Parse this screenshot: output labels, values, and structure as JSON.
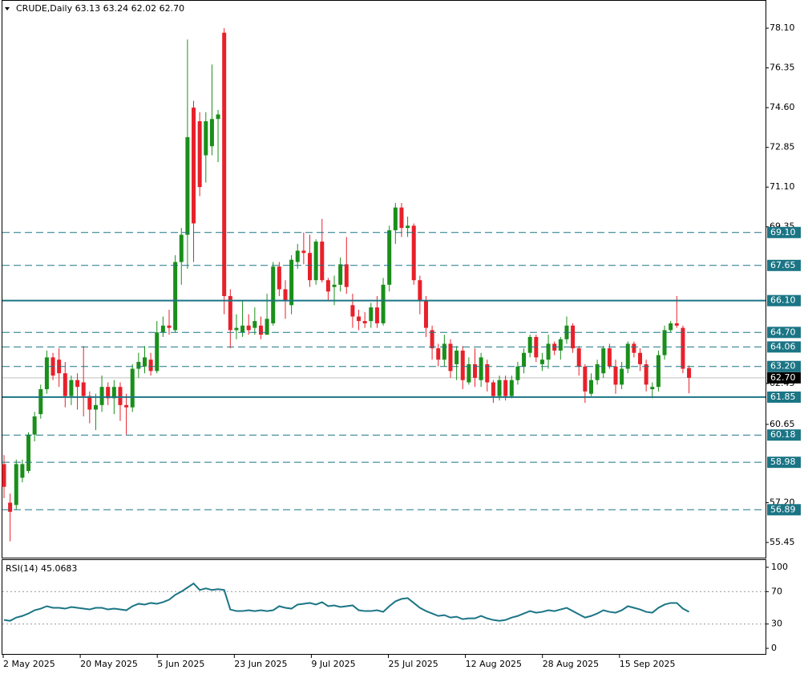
{
  "header": {
    "title": "CRUDE,Daily  63.13 63.24 62.02 62.70"
  },
  "chart_data": [
    {
      "type": "candlestick",
      "up_color": "#1a8f1a",
      "down_color": "#e8202a",
      "ylim": [
        54.78,
        79.34
      ],
      "yticks": [
        {
          "value": 78.1,
          "label": "78.10"
        },
        {
          "value": 76.35,
          "label": "76.35"
        },
        {
          "value": 74.6,
          "label": "74.60"
        },
        {
          "value": 72.85,
          "label": "72.85"
        },
        {
          "value": 71.1,
          "label": "71.10"
        },
        {
          "value": 69.35,
          "label": "69.35"
        },
        {
          "value": 62.45,
          "label": "62.45"
        },
        {
          "value": 60.65,
          "label": "60.65"
        },
        {
          "value": 57.2,
          "label": "57.20"
        },
        {
          "value": 55.45,
          "label": "55.45"
        }
      ],
      "level_color": "#1b7585",
      "levels": [
        {
          "value": 69.1,
          "label": "69.10",
          "style": "dashed"
        },
        {
          "value": 67.65,
          "label": "67.65",
          "style": "dashed"
        },
        {
          "value": 66.1,
          "label": "66.10",
          "style": "solid"
        },
        {
          "value": 64.7,
          "label": "64.70",
          "style": "dashed"
        },
        {
          "value": 64.06,
          "label": "64.06",
          "style": "dashed"
        },
        {
          "value": 63.2,
          "label": "63.20",
          "style": "dashed"
        },
        {
          "value": 61.85,
          "label": "61.85",
          "style": "solid"
        },
        {
          "value": 60.18,
          "label": "60.18",
          "style": "dashed"
        },
        {
          "value": 58.98,
          "label": "58.98",
          "style": "dashed"
        },
        {
          "value": 56.89,
          "label": "56.89",
          "style": "dashed"
        }
      ],
      "current": {
        "value": 62.7,
        "label": "62.70"
      },
      "x_labels": [
        "2 May 2025",
        "20 May 2025",
        "5 Jun 2025",
        "23 Jun 2025",
        "9 Jul 2025",
        "25 Jul 2025",
        "12 Aug 2025",
        "28 Aug 2025",
        "15 Sep 2025"
      ],
      "candles": [
        [
          58.9,
          59.3,
          57.4,
          57.9
        ],
        [
          57.2,
          57.6,
          55.5,
          56.8
        ],
        [
          57.1,
          59.1,
          56.9,
          58.9
        ],
        [
          58.3,
          59.1,
          58.1,
          58.9
        ],
        [
          58.6,
          60.3,
          58.5,
          60.2
        ],
        [
          60.2,
          61.2,
          59.9,
          61.0
        ],
        [
          61.1,
          62.4,
          60.9,
          62.2
        ],
        [
          62.2,
          63.9,
          62.0,
          63.6
        ],
        [
          63.6,
          63.8,
          62.6,
          62.8
        ],
        [
          63.5,
          64.0,
          62.3,
          62.9
        ],
        [
          62.9,
          63.4,
          61.4,
          61.9
        ],
        [
          61.9,
          62.8,
          61.5,
          62.6
        ],
        [
          62.6,
          62.9,
          61.3,
          62.3
        ],
        [
          62.5,
          64.1,
          61.0,
          61.9
        ],
        [
          61.9,
          62.1,
          60.7,
          61.3
        ],
        [
          61.3,
          62.0,
          60.4,
          61.5
        ],
        [
          61.5,
          62.8,
          61.2,
          62.3
        ],
        [
          62.3,
          62.5,
          61.5,
          61.8
        ],
        [
          61.8,
          62.6,
          61.1,
          62.3
        ],
        [
          62.3,
          62.5,
          60.8,
          61.5
        ],
        [
          61.5,
          62.0,
          60.2,
          61.4
        ],
        [
          61.4,
          63.3,
          61.2,
          63.1
        ],
        [
          63.1,
          63.8,
          62.7,
          63.4
        ],
        [
          63.2,
          64.1,
          62.9,
          63.6
        ],
        [
          63.5,
          63.8,
          62.8,
          63.0
        ],
        [
          63.0,
          65.2,
          62.9,
          64.7
        ],
        [
          64.7,
          65.4,
          64.5,
          65.0
        ],
        [
          65.0,
          65.7,
          64.6,
          64.9
        ],
        [
          64.8,
          68.1,
          64.7,
          67.8
        ],
        [
          67.8,
          69.3,
          66.8,
          69.0
        ],
        [
          69.0,
          77.6,
          67.5,
          73.3
        ],
        [
          74.6,
          74.9,
          67.8,
          69.5
        ],
        [
          74.0,
          74.4,
          70.7,
          71.1
        ],
        [
          72.5,
          74.4,
          71.3,
          74.0
        ],
        [
          72.9,
          76.5,
          72.5,
          74.1
        ],
        [
          74.1,
          74.5,
          72.2,
          74.3
        ],
        [
          77.9,
          78.1,
          65.5,
          66.3
        ],
        [
          66.3,
          66.6,
          64.0,
          64.8
        ],
        [
          64.8,
          65.5,
          64.4,
          64.9
        ],
        [
          64.7,
          66.1,
          64.5,
          65.0
        ],
        [
          65.0,
          65.5,
          64.6,
          64.8
        ],
        [
          64.9,
          65.8,
          64.6,
          65.2
        ],
        [
          65.0,
          65.4,
          64.4,
          64.6
        ],
        [
          64.6,
          66.4,
          64.6,
          65.3
        ],
        [
          65.1,
          67.8,
          65.0,
          67.6
        ],
        [
          67.6,
          67.8,
          66.3,
          66.6
        ],
        [
          66.6,
          67.0,
          65.3,
          66.1
        ],
        [
          65.9,
          68.1,
          65.5,
          67.9
        ],
        [
          67.8,
          68.6,
          67.5,
          68.3
        ],
        [
          68.3,
          69.1,
          67.7,
          68.2
        ],
        [
          68.2,
          69.0,
          66.7,
          67.0
        ],
        [
          67.0,
          68.8,
          66.8,
          68.7
        ],
        [
          68.7,
          69.7,
          66.9,
          67.0
        ],
        [
          67.0,
          67.1,
          66.1,
          66.5
        ],
        [
          66.7,
          67.2,
          65.9,
          66.8
        ],
        [
          66.8,
          68.0,
          66.5,
          67.7
        ],
        [
          67.7,
          68.9,
          66.4,
          66.7
        ],
        [
          65.9,
          66.4,
          64.9,
          65.4
        ],
        [
          65.4,
          65.7,
          64.8,
          65.2
        ],
        [
          65.2,
          65.6,
          64.9,
          65.1
        ],
        [
          65.2,
          66.0,
          64.9,
          65.8
        ],
        [
          65.8,
          66.3,
          64.9,
          65.1
        ],
        [
          65.1,
          67.1,
          65.0,
          66.8
        ],
        [
          66.8,
          69.4,
          66.5,
          69.2
        ],
        [
          69.2,
          70.4,
          68.6,
          70.2
        ],
        [
          70.2,
          70.4,
          68.9,
          69.3
        ],
        [
          69.3,
          69.8,
          68.9,
          69.4
        ],
        [
          69.4,
          69.5,
          66.8,
          67.0
        ],
        [
          67.0,
          67.2,
          65.5,
          66.1
        ],
        [
          66.1,
          66.3,
          64.5,
          64.9
        ],
        [
          64.8,
          65.0,
          63.5,
          64.0
        ],
        [
          64.0,
          64.2,
          63.2,
          63.5
        ],
        [
          63.5,
          64.6,
          63.2,
          64.2
        ],
        [
          64.2,
          64.4,
          62.7,
          63.0
        ],
        [
          63.3,
          64.1,
          62.6,
          63.9
        ],
        [
          63.9,
          64.1,
          62.2,
          62.6
        ],
        [
          62.5,
          63.6,
          62.4,
          63.3
        ],
        [
          63.3,
          64.0,
          62.3,
          62.7
        ],
        [
          62.6,
          63.8,
          62.3,
          63.6
        ],
        [
          63.3,
          63.5,
          62.1,
          62.5
        ],
        [
          62.5,
          62.6,
          61.6,
          61.9
        ],
        [
          61.9,
          62.8,
          61.7,
          62.6
        ],
        [
          62.6,
          62.8,
          61.7,
          61.9
        ],
        [
          61.9,
          62.8,
          61.8,
          62.6
        ],
        [
          62.6,
          63.4,
          62.4,
          63.2
        ],
        [
          63.2,
          64.0,
          62.9,
          63.8
        ],
        [
          63.8,
          64.6,
          63.6,
          64.5
        ],
        [
          64.5,
          64.6,
          63.4,
          63.6
        ],
        [
          63.3,
          63.8,
          63.0,
          63.5
        ],
        [
          63.5,
          64.6,
          63.1,
          64.2
        ],
        [
          64.2,
          64.3,
          63.7,
          63.9
        ],
        [
          63.9,
          64.5,
          63.5,
          64.4
        ],
        [
          64.4,
          65.4,
          64.2,
          65.0
        ],
        [
          65.0,
          65.1,
          63.8,
          64.0
        ],
        [
          64.0,
          64.1,
          62.8,
          63.2
        ],
        [
          63.2,
          63.3,
          61.6,
          62.1
        ],
        [
          62.0,
          62.9,
          61.9,
          62.6
        ],
        [
          62.6,
          63.5,
          62.4,
          63.3
        ],
        [
          62.9,
          64.1,
          62.7,
          64.0
        ],
        [
          64.0,
          64.2,
          63.1,
          63.2
        ],
        [
          63.2,
          63.5,
          62.0,
          62.4
        ],
        [
          62.4,
          63.4,
          62.2,
          63.1
        ],
        [
          63.1,
          64.3,
          62.9,
          64.2
        ],
        [
          64.2,
          64.3,
          63.6,
          63.8
        ],
        [
          63.8,
          64.0,
          63.0,
          63.3
        ],
        [
          63.3,
          63.5,
          62.1,
          62.4
        ],
        [
          62.2,
          62.5,
          61.8,
          62.3
        ],
        [
          62.3,
          63.9,
          62.1,
          63.7
        ],
        [
          63.7,
          65.0,
          63.5,
          64.8
        ],
        [
          64.8,
          65.2,
          64.7,
          65.1
        ],
        [
          65.1,
          66.3,
          64.9,
          65.0
        ],
        [
          64.9,
          65.0,
          62.9,
          63.1
        ],
        [
          63.13,
          63.24,
          62.02,
          62.7
        ]
      ]
    },
    {
      "type": "line",
      "title": "RSI(14) 45.0683",
      "color": "#1b7585",
      "ylim": [
        -6.9,
        109.9
      ],
      "yticks": [
        100,
        70,
        30,
        0
      ],
      "values": [
        35,
        34,
        38,
        40,
        43,
        47,
        49,
        52,
        50,
        50,
        49,
        51,
        50,
        49,
        48,
        50,
        50,
        48,
        49,
        48,
        47,
        52,
        55,
        54,
        56,
        55,
        57,
        60,
        66,
        70,
        75,
        80,
        72,
        74,
        72,
        73,
        72,
        48,
        46,
        46,
        47,
        46,
        47,
        46,
        47,
        52,
        50,
        49,
        54,
        55,
        56,
        54,
        57,
        52,
        53,
        51,
        52,
        53,
        47,
        46,
        46,
        47,
        45,
        52,
        58,
        61,
        62,
        56,
        50,
        46,
        43,
        40,
        41,
        38,
        39,
        36,
        37,
        37,
        40,
        37,
        35,
        34,
        35,
        38,
        40,
        43,
        46,
        44,
        45,
        47,
        46,
        48,
        50,
        46,
        42,
        38,
        40,
        43,
        47,
        45,
        44,
        47,
        52,
        50,
        48,
        45,
        44,
        50,
        54,
        56,
        56,
        49,
        45.0683
      ]
    }
  ]
}
